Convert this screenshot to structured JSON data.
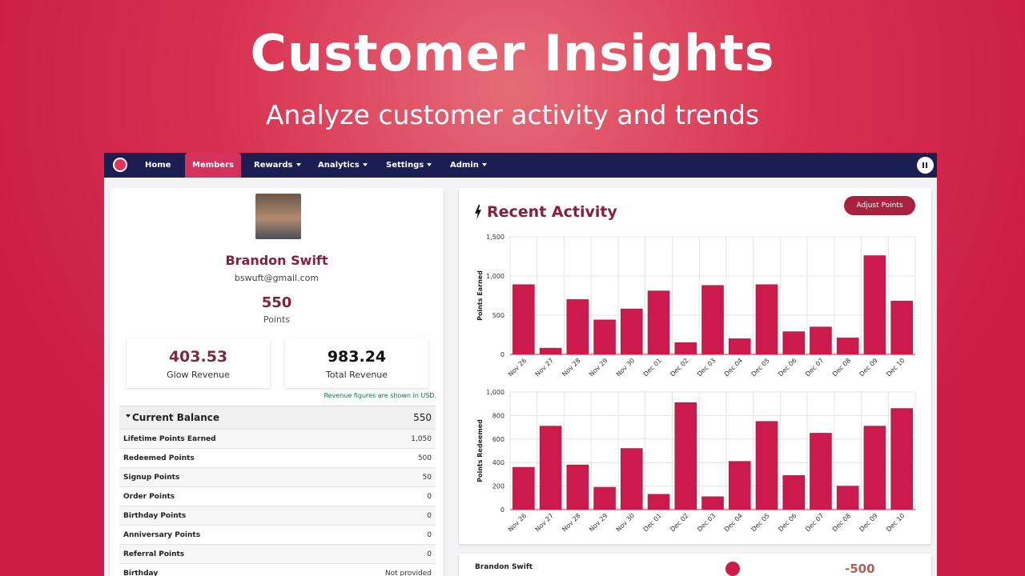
{
  "banner": {
    "title": "Customer Insights",
    "subtitle": "Analyze customer activity and trends"
  },
  "nav": {
    "items": [
      "Home",
      "Members",
      "Rewards",
      "Analytics",
      "Settings",
      "Admin"
    ]
  },
  "profile": {
    "name": "Brandon Swift",
    "email": "bswuft@gmail.com",
    "points": "550",
    "points_label": "Points"
  },
  "revenue": [
    {
      "value": "403.53",
      "label": "Glow Revenue"
    },
    {
      "value": "983.24",
      "label": "Total Revenue"
    }
  ],
  "revenue_note": "Revenue figures are shown in USD.",
  "balance": {
    "title": "Current Balance",
    "value": "550",
    "rows": [
      [
        "Lifetime Points Earned",
        "1,050"
      ],
      [
        "Redeemed Points",
        "500"
      ],
      [
        "Signup Points",
        "50"
      ],
      [
        "Order Points",
        "0"
      ],
      [
        "Birthday Points",
        "0"
      ],
      [
        "Anniversary Points",
        "0"
      ],
      [
        "Referral Points",
        "0"
      ],
      [
        "Birthday",
        "Not provided"
      ]
    ]
  },
  "activity": {
    "title": "Recent Activity",
    "button": "Adjust Points"
  },
  "chart_data": [
    {
      "type": "bar",
      "y_label": "Points Earned",
      "color": "#cc1a4d",
      "grid": true,
      "categories": [
        "Nov 26",
        "Nov 27",
        "Nov 28",
        "Nov 29",
        "Nov 30",
        "Dec 01",
        "Dec 02",
        "Dec 03",
        "Dec 04",
        "Dec 05",
        "Dec 06",
        "Dec 07",
        "Dec 08",
        "Dec 09",
        "Dec 10"
      ],
      "values": [
        890,
        80,
        700,
        440,
        580,
        810,
        150,
        880,
        200,
        890,
        290,
        350,
        210,
        1260,
        680
      ],
      "ylim": [
        0,
        1500
      ],
      "yticks": [
        0,
        500,
        {
          "value": 1000,
          "label": "1,000"
        },
        {
          "value": 1500,
          "label": "1,500"
        }
      ]
    },
    {
      "type": "bar",
      "y_label": "Points Redeemed",
      "color": "#cc1a4d",
      "grid": true,
      "categories": [
        "Nov 26",
        "Nov 27",
        "Nov 28",
        "Nov 29",
        "Nov 30",
        "Dec 01",
        "Dec 02",
        "Dec 03",
        "Dec 04",
        "Dec 05",
        "Dec 06",
        "Dec 07",
        "Dec 08",
        "Dec 09",
        "Dec 10"
      ],
      "values": [
        360,
        710,
        380,
        190,
        520,
        130,
        910,
        110,
        410,
        750,
        290,
        650,
        200,
        710,
        860
      ],
      "ylim": [
        0,
        1000
      ],
      "yticks": [
        0,
        200,
        400,
        600,
        800,
        {
          "value": 1000,
          "label": "1,000"
        }
      ]
    }
  ],
  "entry": {
    "name": "Brandon Swift",
    "points": "-500"
  }
}
